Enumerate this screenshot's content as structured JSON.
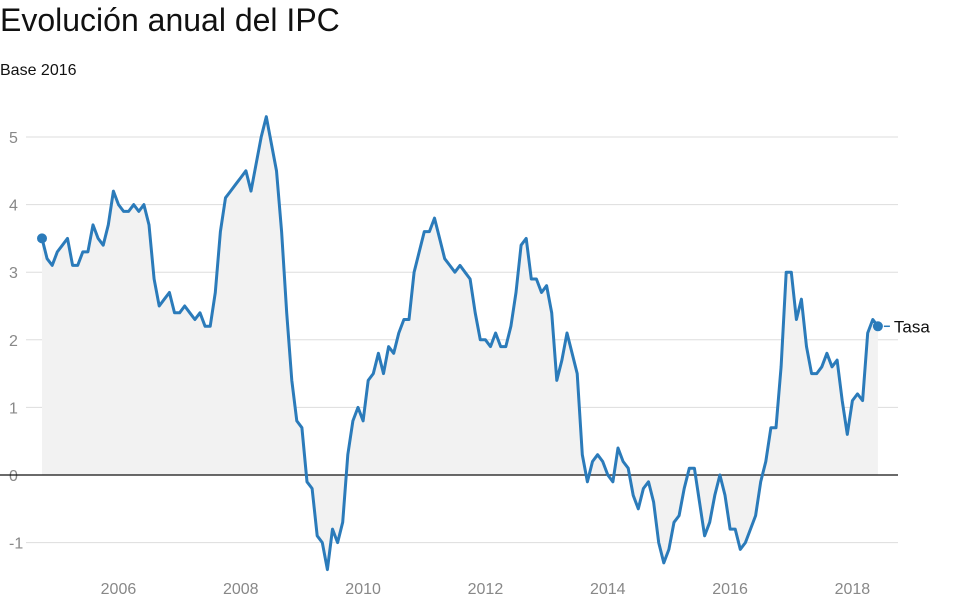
{
  "chart_data": {
    "type": "area",
    "title": "Evolución anual del IPC",
    "subtitle": "Base 2016",
    "xlabel": "",
    "ylabel": "",
    "xlim": [
      2004.75,
      2018.5
    ],
    "ylim": [
      -1.5,
      5.5
    ],
    "x_ticks": [
      2006,
      2008,
      2010,
      2012,
      2014,
      2016,
      2018
    ],
    "y_ticks": [
      -1,
      0,
      1,
      2,
      3,
      4,
      5
    ],
    "grid": true,
    "series": [
      {
        "name": "Tasa",
        "color": "#2b7bba",
        "fill": "#f2f2f2",
        "start": [
          2004,
          10
        ],
        "values": [
          3.5,
          3.2,
          3.1,
          3.3,
          3.4,
          3.5,
          3.1,
          3.1,
          3.3,
          3.3,
          3.7,
          3.5,
          3.4,
          3.7,
          4.2,
          4.0,
          3.9,
          3.9,
          4.0,
          3.9,
          4.0,
          3.7,
          2.9,
          2.5,
          2.6,
          2.7,
          2.4,
          2.4,
          2.5,
          2.4,
          2.3,
          2.4,
          2.2,
          2.2,
          2.7,
          3.6,
          4.1,
          4.2,
          4.3,
          4.4,
          4.5,
          4.2,
          4.6,
          5.0,
          5.3,
          4.9,
          4.5,
          3.6,
          2.4,
          1.4,
          0.8,
          0.7,
          -0.1,
          -0.2,
          -0.9,
          -1.0,
          -1.4,
          -0.8,
          -1.0,
          -0.7,
          0.3,
          0.8,
          1.0,
          0.8,
          1.4,
          1.5,
          1.8,
          1.5,
          1.9,
          1.8,
          2.1,
          2.3,
          2.3,
          3.0,
          3.3,
          3.6,
          3.6,
          3.8,
          3.5,
          3.2,
          3.1,
          3.0,
          3.1,
          3.0,
          2.9,
          2.4,
          2.0,
          2.0,
          1.9,
          2.1,
          1.9,
          1.9,
          2.2,
          2.7,
          3.4,
          3.5,
          2.9,
          2.9,
          2.7,
          2.8,
          2.4,
          1.4,
          1.7,
          2.1,
          1.8,
          1.5,
          0.3,
          -0.1,
          0.2,
          0.3,
          0.2,
          0.0,
          -0.1,
          0.4,
          0.2,
          0.1,
          -0.3,
          -0.5,
          -0.2,
          -0.1,
          -0.4,
          -1.0,
          -1.3,
          -1.1,
          -0.7,
          -0.6,
          -0.2,
          0.1,
          0.1,
          -0.4,
          -0.9,
          -0.7,
          -0.3,
          0.0,
          -0.3,
          -0.8,
          -0.8,
          -1.1,
          -1.0,
          -0.8,
          -0.6,
          -0.1,
          0.2,
          0.7,
          0.7,
          1.6,
          3.0,
          3.0,
          2.3,
          2.6,
          1.9,
          1.5,
          1.5,
          1.6,
          1.8,
          1.6,
          1.7,
          1.1,
          0.6,
          1.1,
          1.2,
          1.1,
          2.1,
          2.3,
          2.2
        ]
      }
    ],
    "series_label": "Tasa",
    "baseline": 0
  }
}
